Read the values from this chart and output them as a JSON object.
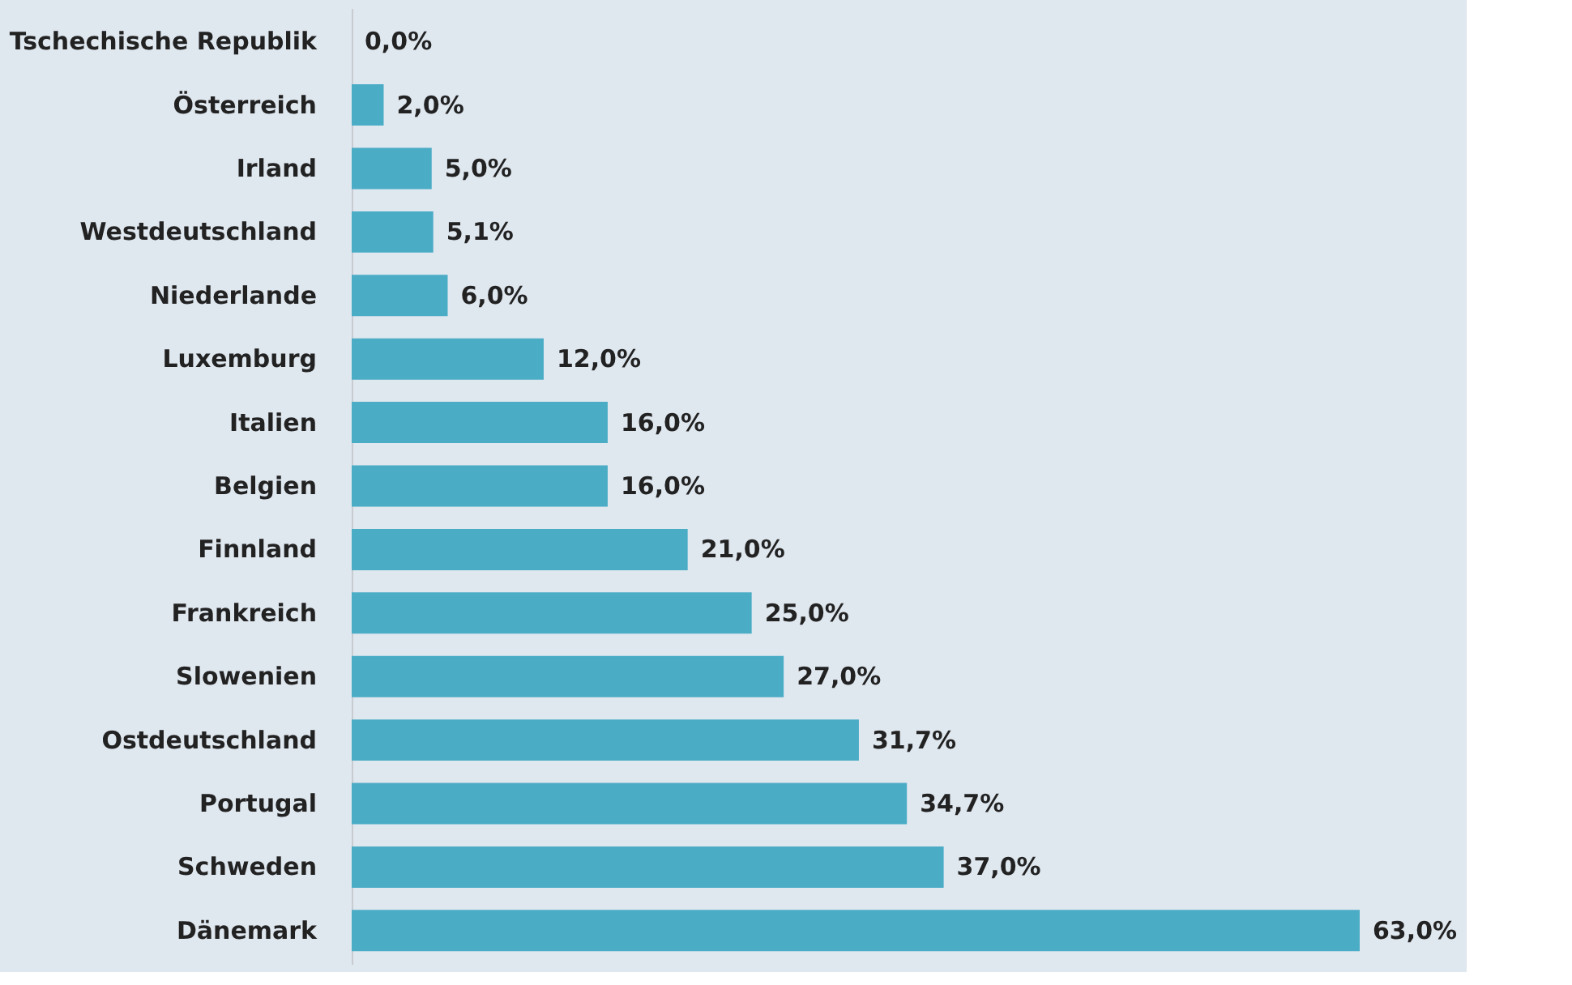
{
  "chart_data": {
    "type": "bar",
    "orientation": "horizontal",
    "categories": [
      "Tschechische Republik",
      "Österreich",
      "Irland",
      "Westdeutschland",
      "Niederlande",
      "Luxemburg",
      "Italien",
      "Belgien",
      "Finnland",
      "Frankreich",
      "Slowenien",
      "Ostdeutschland",
      "Portugal",
      "Schweden",
      "Dänemark"
    ],
    "values": [
      0.0,
      2.0,
      5.0,
      5.1,
      6.0,
      12.0,
      16.0,
      16.0,
      21.0,
      25.0,
      27.0,
      31.7,
      34.7,
      37.0,
      63.0
    ],
    "value_labels": [
      "0,0%",
      "2,0%",
      "5,0%",
      "5,1%",
      "6,0%",
      "12,0%",
      "16,0%",
      "16,0%",
      "21,0%",
      "25,0%",
      "27,0%",
      "31,7%",
      "34,7%",
      "37,0%",
      "63,0%"
    ],
    "color": "#4bacc6",
    "grid": false
  }
}
